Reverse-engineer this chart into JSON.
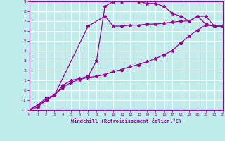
{
  "xlabel": "Windchill (Refroidissement éolien,°C)",
  "xlim": [
    0,
    23
  ],
  "ylim": [
    -2,
    9
  ],
  "bg_color": "#c0ecec",
  "line_color": "#990099",
  "grid_color": "#ffffff",
  "line1_x": [
    0,
    1,
    2,
    3,
    4,
    5,
    6,
    7,
    8,
    9,
    10,
    11,
    12,
    13,
    14,
    15,
    16,
    17,
    18,
    19,
    20,
    21,
    22,
    23
  ],
  "line1_y": [
    -2.0,
    -1.7,
    -1.0,
    -0.5,
    0.3,
    0.8,
    1.1,
    1.3,
    1.4,
    1.6,
    1.9,
    2.1,
    2.4,
    2.6,
    2.9,
    3.2,
    3.6,
    4.0,
    4.8,
    5.5,
    6.1,
    6.6,
    6.5,
    6.5
  ],
  "line2_x": [
    0,
    2,
    3,
    7,
    9,
    10,
    11,
    12,
    13,
    14,
    15,
    16,
    17,
    18,
    19,
    20,
    21,
    22,
    23
  ],
  "line2_y": [
    -2.0,
    -1.0,
    -0.5,
    6.5,
    7.5,
    6.5,
    6.5,
    6.6,
    6.6,
    6.7,
    6.7,
    6.8,
    6.9,
    7.0,
    7.0,
    7.5,
    6.7,
    6.5,
    6.5
  ],
  "line3_x": [
    0,
    1,
    2,
    3,
    4,
    5,
    6,
    7,
    8,
    9,
    10,
    11,
    12,
    13,
    14,
    15,
    16,
    17,
    18,
    19,
    20,
    21,
    22,
    23
  ],
  "line3_y": [
    -2.0,
    -1.5,
    -0.8,
    -0.5,
    0.5,
    1.0,
    1.2,
    1.4,
    3.0,
    8.5,
    9.0,
    9.0,
    9.2,
    9.0,
    8.8,
    8.8,
    8.5,
    7.8,
    7.5,
    7.0,
    7.5,
    7.5,
    6.5,
    6.5
  ],
  "xticks": [
    0,
    1,
    2,
    3,
    4,
    5,
    6,
    7,
    8,
    9,
    10,
    11,
    12,
    13,
    14,
    15,
    16,
    17,
    18,
    19,
    20,
    21,
    22,
    23
  ],
  "yticks": [
    -2,
    -1,
    0,
    1,
    2,
    3,
    4,
    5,
    6,
    7,
    8,
    9
  ]
}
